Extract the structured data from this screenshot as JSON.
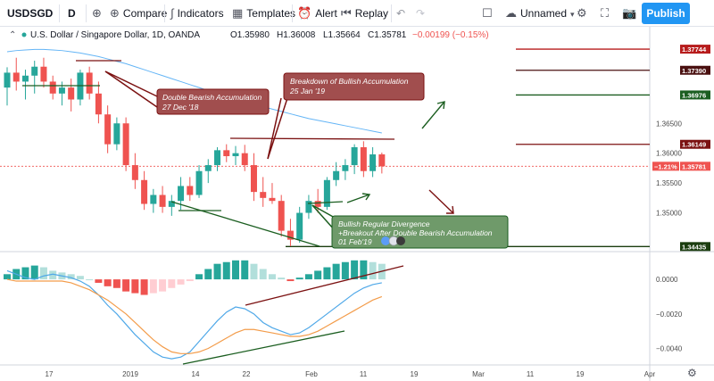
{
  "toolbar": {
    "symbol": "USDSGD",
    "interval": "D",
    "add_icon": "plus-circle-icon",
    "compare_label": "Compare",
    "indicators_label": "Indicators",
    "templates_label": "Templates",
    "alert_label": "Alert",
    "replay_label": "Replay",
    "layout_name": "Unnamed",
    "publish_label": "Publish"
  },
  "legend": {
    "title": "U.S. Dollar / Singapore Dollar, 1D, OANDA",
    "open": "O1.35980",
    "high": "H1.36008",
    "low": "L1.35664",
    "close": "C1.35781",
    "change": "−0.00199 (−0.15%)"
  },
  "price_axis": {
    "ticks": [
      "1.36500",
      "1.36000",
      "1.35500",
      "1.35000"
    ],
    "tags": [
      {
        "label": "1.37744",
        "color": "#b71c1c"
      },
      {
        "label": "1.37390",
        "color": "#4a1010"
      },
      {
        "label": "1.36976",
        "color": "#1b5e20"
      },
      {
        "label": "1.36149",
        "color": "#7b1111"
      },
      {
        "label": "1.35781",
        "color": "#ef5350",
        "prefix": "−1.21%"
      },
      {
        "label": "1.34435",
        "color": "#1b3d0f"
      }
    ]
  },
  "macd_axis": {
    "ticks": [
      "0.0000",
      "−0.0020",
      "−0.0040"
    ]
  },
  "time_axis": {
    "labels": [
      "17",
      "2019",
      "14",
      "22",
      "Feb",
      "11",
      "19",
      "Mar",
      "11",
      "19",
      "Apr"
    ]
  },
  "annotations": {
    "double_bearish": [
      "Double Bearish Accumulation",
      "27 Dec '18"
    ],
    "breakdown": [
      "Breakdown of Bullish Accumulation",
      "25 Jan '19"
    ],
    "bullish_div": [
      "Bullish Regular Divergence",
      "+Breakout After Double Bearish Accumulation",
      "01 Feb'19"
    ]
  },
  "chart_data": {
    "type": "candlestick",
    "symbol": "USDSGD",
    "series": [
      {
        "name": "price",
        "ohlc": [
          [
            1.371,
            1.3744,
            1.368,
            1.3735
          ],
          [
            1.3735,
            1.376,
            1.3705,
            1.372
          ],
          [
            1.372,
            1.374,
            1.369,
            1.373
          ],
          [
            1.373,
            1.3755,
            1.37,
            1.3745
          ],
          [
            1.3745,
            1.376,
            1.371,
            1.372
          ],
          [
            1.372,
            1.373,
            1.369,
            1.37
          ],
          [
            1.37,
            1.372,
            1.368,
            1.371
          ],
          [
            1.371,
            1.3725,
            1.367,
            1.369
          ],
          [
            1.369,
            1.374,
            1.368,
            1.3735
          ],
          [
            1.3735,
            1.3745,
            1.369,
            1.37
          ],
          [
            1.37,
            1.372,
            1.365,
            1.3665
          ],
          [
            1.3665,
            1.368,
            1.36,
            1.3615
          ],
          [
            1.3615,
            1.366,
            1.3605,
            1.365
          ],
          [
            1.365,
            1.366,
            1.357,
            1.358
          ],
          [
            1.358,
            1.36,
            1.354,
            1.3555
          ],
          [
            1.3555,
            1.357,
            1.3505,
            1.3515
          ],
          [
            1.3515,
            1.354,
            1.35,
            1.353
          ],
          [
            1.353,
            1.3545,
            1.35,
            1.351
          ],
          [
            1.351,
            1.353,
            1.3495,
            1.352
          ],
          [
            1.352,
            1.356,
            1.3505,
            1.3545
          ],
          [
            1.3545,
            1.356,
            1.352,
            1.353
          ],
          [
            1.353,
            1.358,
            1.3525,
            1.357
          ],
          [
            1.357,
            1.359,
            1.355,
            1.358
          ],
          [
            1.358,
            1.361,
            1.357,
            1.3605
          ],
          [
            1.3605,
            1.3615,
            1.3585,
            1.3595
          ],
          [
            1.3595,
            1.3612,
            1.358,
            1.36
          ],
          [
            1.36,
            1.3614,
            1.357,
            1.358
          ],
          [
            1.358,
            1.36,
            1.352,
            1.3535
          ],
          [
            1.3535,
            1.356,
            1.351,
            1.3525
          ],
          [
            1.3525,
            1.355,
            1.3515,
            1.352
          ],
          [
            1.352,
            1.353,
            1.346,
            1.347
          ],
          [
            1.347,
            1.349,
            1.3444,
            1.3455
          ],
          [
            1.3455,
            1.351,
            1.345,
            1.35
          ],
          [
            1.35,
            1.353,
            1.349,
            1.352
          ],
          [
            1.352,
            1.354,
            1.35,
            1.351
          ],
          [
            1.351,
            1.356,
            1.3505,
            1.3555
          ],
          [
            1.3555,
            1.3585,
            1.3545,
            1.357
          ],
          [
            1.357,
            1.359,
            1.3555,
            1.358
          ],
          [
            1.358,
            1.3615,
            1.3565,
            1.361
          ],
          [
            1.361,
            1.362,
            1.356,
            1.357
          ],
          [
            1.357,
            1.361,
            1.356,
            1.3598
          ],
          [
            1.3598,
            1.3601,
            1.3566,
            1.3578
          ]
        ]
      },
      {
        "name": "ma",
        "values": [
          1.377,
          1.3772,
          1.3773,
          1.3774,
          1.3774,
          1.3773,
          1.3772,
          1.377,
          1.3768,
          1.3765,
          1.3762,
          1.3758,
          1.3754,
          1.375,
          1.3745,
          1.374,
          1.3735,
          1.373,
          1.3725,
          1.372,
          1.3715,
          1.371,
          1.3705,
          1.37,
          1.3695,
          1.369,
          1.3686,
          1.3682,
          1.3678,
          1.3674,
          1.367,
          1.3666,
          1.3662,
          1.3658,
          1.3655,
          1.3652,
          1.3649,
          1.3646,
          1.3643,
          1.364,
          1.3637,
          1.3634
        ]
      }
    ],
    "macd_hist": [
      0.0003,
      0.0006,
      0.0007,
      0.0008,
      0.0007,
      0.0005,
      0.0004,
      0.0003,
      0.0002,
      0.0,
      -0.0002,
      -0.0004,
      -0.0005,
      -0.0007,
      -0.0008,
      -0.0009,
      -0.0008,
      -0.0007,
      -0.0005,
      -0.0003,
      -0.0001,
      0.0003,
      0.0006,
      0.0009,
      0.001,
      0.0011,
      0.0011,
      0.0009,
      0.0006,
      0.0003,
      0.0001,
      -0.0001,
      0.0001,
      0.0003,
      0.0005,
      0.0007,
      0.0009,
      0.001,
      0.0011,
      0.0011,
      0.001,
      0.0009
    ],
    "macd_line": [
      0.0005,
      0.0003,
      0.0001,
      0.0,
      0.0002,
      0.0003,
      0.0002,
      0.0001,
      -0.0001,
      -0.0004,
      -0.0009,
      -0.0015,
      -0.002,
      -0.0026,
      -0.0032,
      -0.0037,
      -0.0042,
      -0.0045,
      -0.0046,
      -0.0045,
      -0.0042,
      -0.0036,
      -0.003,
      -0.0024,
      -0.0019,
      -0.0016,
      -0.0017,
      -0.002,
      -0.0025,
      -0.0028,
      -0.003,
      -0.0032,
      -0.0031,
      -0.0028,
      -0.0024,
      -0.002,
      -0.0016,
      -0.0012,
      -0.0008,
      -0.0005,
      -0.0003,
      -0.0002
    ],
    "signal_line": [
      0.0,
      -0.0001,
      -0.0001,
      -0.0001,
      -0.0001,
      -0.0001,
      -0.0001,
      -0.0002,
      -0.0004,
      -0.0006,
      -0.0009,
      -0.0012,
      -0.0016,
      -0.002,
      -0.0025,
      -0.003,
      -0.0035,
      -0.0039,
      -0.0042,
      -0.0043,
      -0.0043,
      -0.0042,
      -0.004,
      -0.0037,
      -0.0034,
      -0.0031,
      -0.0029,
      -0.0029,
      -0.003,
      -0.0031,
      -0.0032,
      -0.0033,
      -0.0033,
      -0.0032,
      -0.003,
      -0.0027,
      -0.0024,
      -0.0021,
      -0.0018,
      -0.0015,
      -0.0012,
      -0.001
    ],
    "price_ylim": [
      1.3438,
      1.3782
    ],
    "macd_ylim": [
      -0.0048,
      0.0014
    ]
  }
}
